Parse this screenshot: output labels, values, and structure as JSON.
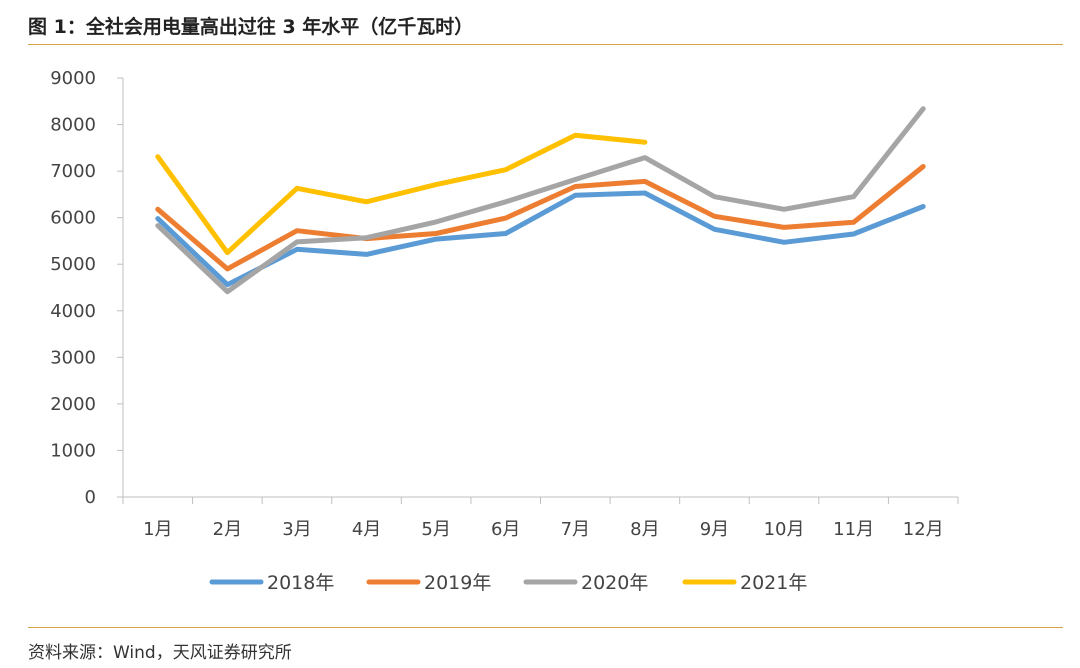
{
  "title": "图 1：全社会用电量高出过往 3 年水平（亿千瓦时）",
  "source": "资料来源：Wind，天风证券研究所",
  "chart_data": {
    "type": "line",
    "title": "图 1：全社会用电量高出过往 3 年水平（亿千瓦时）",
    "categories": [
      "1月",
      "2月",
      "3月",
      "4月",
      "5月",
      "6月",
      "7月",
      "8月",
      "9月",
      "10月",
      "11月",
      "12月"
    ],
    "yticks": [
      "0",
      "1000",
      "2000",
      "3000",
      "4000",
      "5000",
      "6000",
      "7000",
      "8000",
      "9000"
    ],
    "ylim": [
      0,
      9000
    ],
    "grid": false,
    "legend_position": "bottom",
    "series": [
      {
        "name": "2018年",
        "color": "#5b9bd5",
        "values": [
          5980,
          4560,
          5320,
          5210,
          5540,
          5660,
          6480,
          6530,
          5750,
          5470,
          5650,
          6240
        ]
      },
      {
        "name": "2019年",
        "color": "#ed7d31",
        "values": [
          6180,
          4900,
          5720,
          5550,
          5660,
          5990,
          6670,
          6780,
          6030,
          5790,
          5900,
          7100
        ]
      },
      {
        "name": "2020年",
        "color": "#a5a5a5",
        "values": [
          5830,
          4410,
          5480,
          5570,
          5910,
          6340,
          6820,
          7290,
          6450,
          6180,
          6450,
          8340
        ]
      },
      {
        "name": "2021年",
        "color": "#ffc000",
        "values": [
          7310,
          5250,
          6630,
          6340,
          6710,
          7030,
          7770,
          7620,
          null,
          null,
          null,
          null
        ]
      }
    ]
  }
}
